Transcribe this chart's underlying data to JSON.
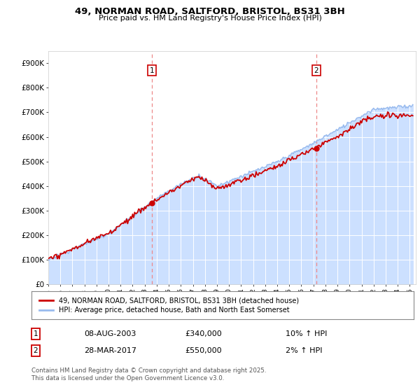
{
  "title_line1": "49, NORMAN ROAD, SALTFORD, BRISTOL, BS31 3BH",
  "title_line2": "Price paid vs. HM Land Registry's House Price Index (HPI)",
  "legend_label1": "49, NORMAN ROAD, SALTFORD, BRISTOL, BS31 3BH (detached house)",
  "legend_label2": "HPI: Average price, detached house, Bath and North East Somerset",
  "transaction1_date": "08-AUG-2003",
  "transaction1_price": "£340,000",
  "transaction1_hpi": "10% ↑ HPI",
  "transaction2_date": "28-MAR-2017",
  "transaction2_price": "£550,000",
  "transaction2_hpi": "2% ↑ HPI",
  "footer": "Contains HM Land Registry data © Crown copyright and database right 2025.\nThis data is licensed under the Open Government Licence v3.0.",
  "ylim_min": 0,
  "ylim_max": 950000,
  "yticks": [
    0,
    100000,
    200000,
    300000,
    400000,
    500000,
    600000,
    700000,
    800000,
    900000
  ],
  "ytick_labels": [
    "£0",
    "£100K",
    "£200K",
    "£300K",
    "£400K",
    "£500K",
    "£600K",
    "£700K",
    "£800K",
    "£900K"
  ],
  "color_red": "#cc0000",
  "color_blue": "#99bbee",
  "color_fill": "#cce0ff",
  "color_dashed": "#ee8888",
  "transaction1_year": 2003.585,
  "transaction2_year": 2017.23,
  "xmin": 1995,
  "xmax": 2025.5,
  "plot_bg": "#ffffff"
}
